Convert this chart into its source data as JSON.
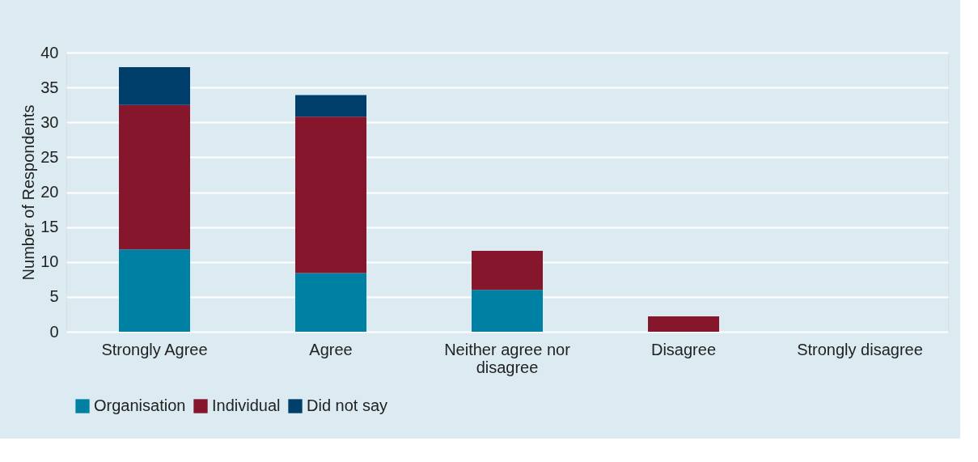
{
  "chart_data": {
    "type": "bar",
    "stacked": true,
    "ylabel": "Number of Respondents",
    "categories": [
      "Strongly Agree",
      "Agree",
      "Neither agree nor disagree",
      "Disagree",
      "Strongly disagree"
    ],
    "series": [
      {
        "name": "Organisation",
        "color": "#0081a3",
        "values": [
          11.8,
          8.4,
          6.0,
          0,
          0
        ]
      },
      {
        "name": "Individual",
        "color": "#85162b",
        "values": [
          20.7,
          22.4,
          5.6,
          2.2,
          0
        ]
      },
      {
        "name": "Did not say",
        "color": "#003e6c",
        "values": [
          5.4,
          3.1,
          0,
          0,
          0
        ]
      }
    ],
    "ylim": [
      0,
      40
    ],
    "yticks": [
      0,
      5,
      10,
      15,
      20,
      25,
      30,
      35,
      40
    ],
    "grid": "y",
    "legend": "bottom"
  }
}
